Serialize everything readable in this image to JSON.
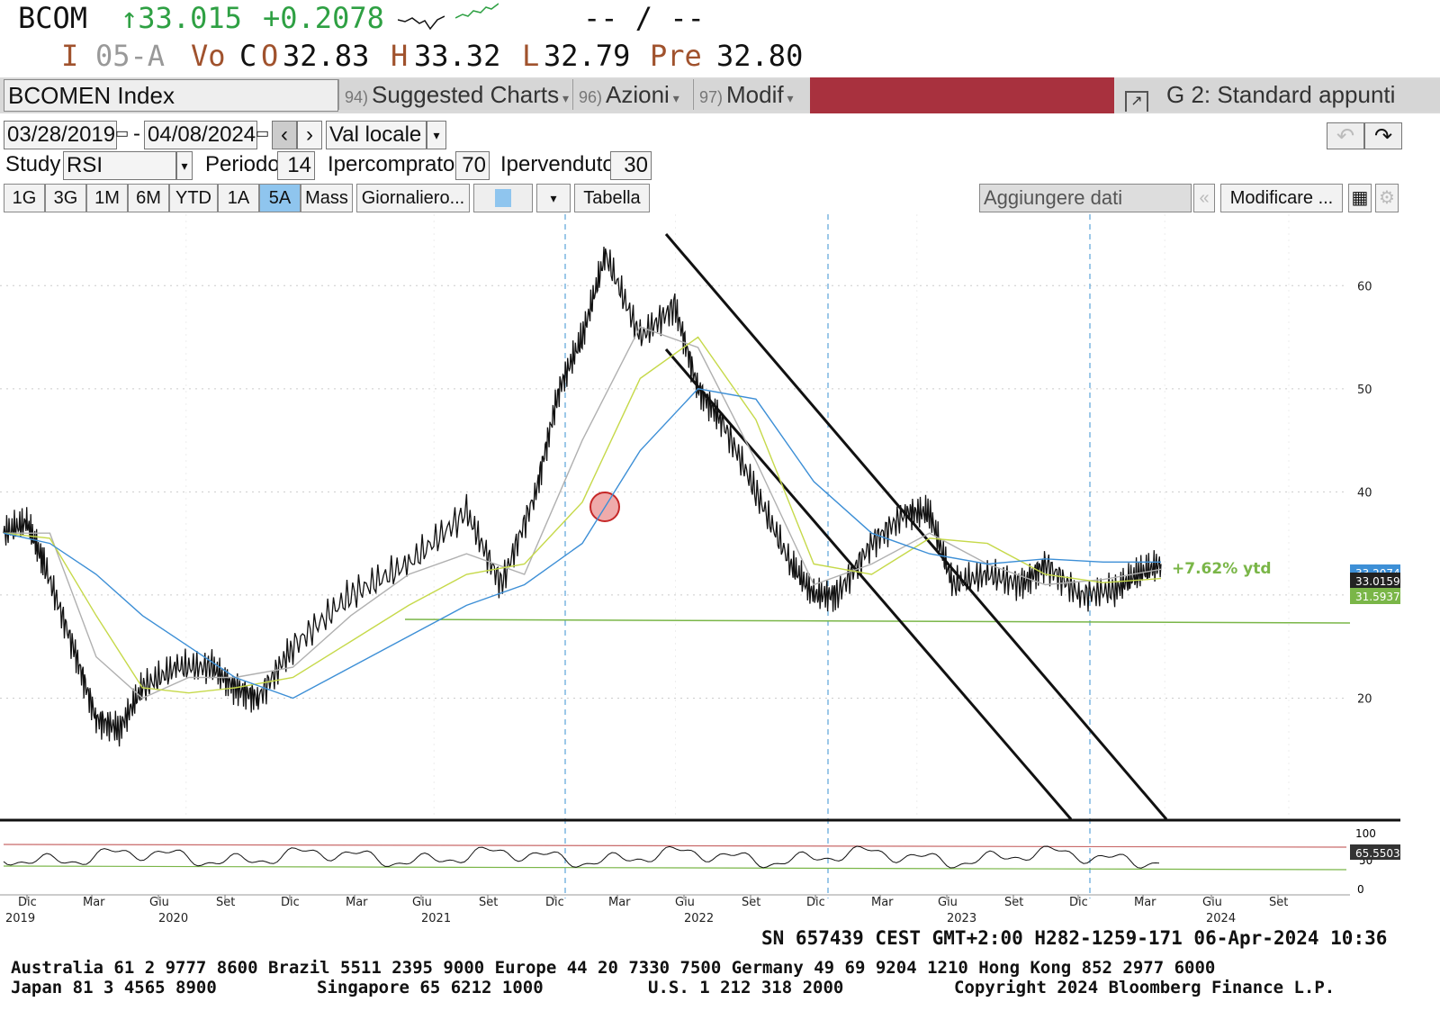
{
  "header": {
    "ticker": "BCOM",
    "last_price": "↑33.015",
    "change": "+0.2078",
    "bid_ask": "-- / --",
    "row2": {
      "labels": [
        "I",
        "05-A",
        "Vo",
        "C",
        "O",
        "H",
        "L",
        "Pre"
      ],
      "open": "32.83",
      "high": "33.32",
      "low": "32.79",
      "prev": "32.80"
    }
  },
  "toolbar": {
    "security": "BCOMEN Index",
    "suggested_num": "94)",
    "suggested": "Suggested Charts",
    "azioni_num": "96)",
    "azioni": "Azioni",
    "modif_num": "97)",
    "modif": "Modif",
    "layout": "G 2: Standard appunti"
  },
  "controls": {
    "start_date": "03/28/2019",
    "end_date": "04/08/2024",
    "dash": "-",
    "currency": "Val locale",
    "study_label": "Study",
    "study": "RSI",
    "period_label": "Periodo",
    "period": "14",
    "overbought_label": "Ipercomprato",
    "overbought": "70",
    "oversold_label": "Ipervenduto",
    "oversold": "30",
    "periods": [
      "1G",
      "3G",
      "1M",
      "6M",
      "YTD",
      "1A",
      "5A",
      "Mass"
    ],
    "active_period": "5A",
    "frequency": "Giornaliero...",
    "table": "Tabella",
    "add_data": "Aggiungere dati",
    "edit": "Modificare ..."
  },
  "chart_data": {
    "type": "line",
    "annotation": "+7.62% ytd",
    "y_ticks": [
      "60",
      "50",
      "40",
      "30",
      "20"
    ],
    "ylim": [
      10,
      65
    ],
    "price_labels": [
      {
        "value": "33.2074",
        "color": "#3d8fd6"
      },
      {
        "value": "33.0159",
        "color": "#111111"
      },
      {
        "value": "31.5937",
        "color": "#7ab648"
      }
    ],
    "rsi_ticks": [
      "100",
      "50",
      "0"
    ],
    "rsi_value": "65.5503",
    "x_months": [
      "Dic",
      "Mar",
      "Giu",
      "Set",
      "Dic",
      "Mar",
      "Giu",
      "Set",
      "Dic",
      "Mar",
      "Giu",
      "Set",
      "Dic",
      "Mar",
      "Giu",
      "Set",
      "Dic",
      "Mar",
      "Giu",
      "Set"
    ],
    "x_years": [
      "2019",
      "2020",
      "2021",
      "2022",
      "2023",
      "2024"
    ],
    "series": [
      {
        "color": "#111111",
        "x": [
          0,
          0.02,
          0.035,
          0.06,
          0.08,
          0.1,
          0.12,
          0.15,
          0.18,
          0.2,
          0.22,
          0.25,
          0.3,
          0.35,
          0.4,
          0.43,
          0.46,
          0.48,
          0.5,
          0.52,
          0.55,
          0.58,
          0.6,
          0.62,
          0.65,
          0.68,
          0.7,
          0.72,
          0.75,
          0.78,
          0.8,
          0.82,
          0.85,
          0.88,
          0.9,
          0.93,
          0.96,
          0.98,
          1.0
        ],
        "y": [
          36,
          37,
          33,
          25,
          18,
          17,
          21,
          23,
          23,
          21,
          20,
          25,
          30,
          33,
          38,
          31,
          40,
          50,
          55,
          63,
          55,
          58,
          50,
          47,
          40,
          33,
          30,
          30,
          35,
          38,
          38,
          31,
          32,
          31,
          33,
          30,
          30.5,
          32,
          33
        ]
      },
      {
        "color": "#b0b0b0",
        "x": [
          0,
          0.04,
          0.08,
          0.12,
          0.16,
          0.2,
          0.25,
          0.3,
          0.35,
          0.4,
          0.45,
          0.5,
          0.55,
          0.6,
          0.65,
          0.7,
          0.75,
          0.8,
          0.85,
          0.9,
          0.95,
          1.0
        ],
        "y": [
          36,
          36,
          24,
          20,
          22,
          22,
          23,
          28,
          32,
          34,
          32,
          45,
          56,
          54,
          43,
          31,
          33,
          36,
          33,
          31,
          31.5,
          32.5
        ]
      },
      {
        "color": "#c6d94a",
        "x": [
          0,
          0.04,
          0.08,
          0.12,
          0.16,
          0.2,
          0.25,
          0.3,
          0.35,
          0.4,
          0.45,
          0.5,
          0.55,
          0.6,
          0.65,
          0.7,
          0.75,
          0.8,
          0.85,
          0.9,
          0.95,
          1.0
        ],
        "y": [
          36,
          35.5,
          28,
          21,
          20.5,
          21,
          22,
          25.5,
          29,
          32,
          33,
          39,
          51,
          55,
          47,
          33,
          32,
          35.5,
          35,
          32,
          31.2,
          31.6
        ]
      },
      {
        "color": "#3d8fd6",
        "x": [
          0,
          0.04,
          0.08,
          0.12,
          0.16,
          0.2,
          0.25,
          0.3,
          0.35,
          0.4,
          0.45,
          0.5,
          0.55,
          0.6,
          0.65,
          0.7,
          0.75,
          0.8,
          0.85,
          0.9,
          0.95,
          1.0
        ],
        "y": [
          36,
          35,
          32,
          28,
          25,
          22,
          20,
          23,
          26,
          29,
          31,
          35,
          44,
          50,
          49,
          41,
          36,
          34,
          33,
          33.5,
          33.2,
          33.2
        ]
      }
    ]
  },
  "footer": {
    "session": "SN 657439 CEST GMT+2:00 H282-1259-171 06-Apr-2024 10:36",
    "line1": "Australia 61 2 9777 8600 Brazil 5511 2395 9000 Europe 44 20 7330 7500 Germany 49 69 9204 1210 Hong Kong 852 2977 6000",
    "line2_a": "Japan 81 3 4565 8900",
    "line2_b": "Singapore 65 6212 1000",
    "line2_c": "U.S. 1 212 318 2000",
    "line2_d": "Copyright 2024 Bloomberg Finance L.P."
  }
}
